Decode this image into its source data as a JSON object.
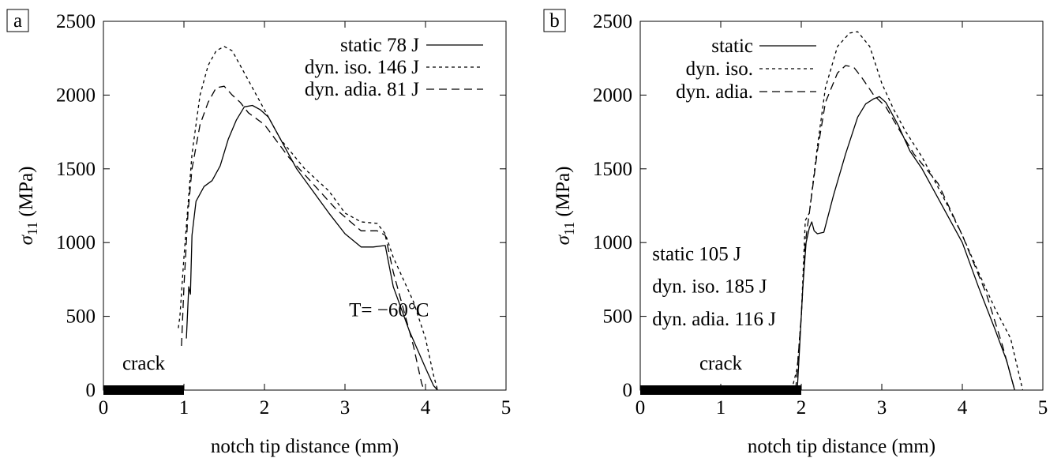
{
  "chart_data": [
    {
      "type": "line",
      "panel_label": "a",
      "xlabel": "notch tip distance (mm)",
      "ylabel": "σ11 (MPa)",
      "xlim": [
        0,
        5
      ],
      "ylim": [
        0,
        2500
      ],
      "xticks": [
        "0",
        "1",
        "2",
        "3",
        "4",
        "5"
      ],
      "yticks": [
        "0",
        "500",
        "1000",
        "1500",
        "2000",
        "2500"
      ],
      "grid": false,
      "legend_position": "top-right",
      "crack": {
        "label": "crack",
        "x_start": 0,
        "x_end": 1
      },
      "annotations": [
        {
          "text": "T= −60°C",
          "x": 3.05,
          "y": 500
        }
      ],
      "series": [
        {
          "name": "static 78 J",
          "style": "solid",
          "x": [
            1.03,
            1.06,
            1.08,
            1.1,
            1.15,
            1.25,
            1.35,
            1.45,
            1.55,
            1.65,
            1.75,
            1.85,
            1.95,
            2.05,
            2.2,
            2.4,
            2.6,
            2.8,
            3.0,
            3.2,
            3.35,
            3.5,
            3.6,
            3.8,
            4.0,
            4.1,
            4.15
          ],
          "y": [
            350,
            700,
            650,
            1050,
            1280,
            1380,
            1420,
            1520,
            1700,
            1830,
            1920,
            1930,
            1900,
            1850,
            1700,
            1500,
            1350,
            1200,
            1060,
            970,
            970,
            980,
            700,
            400,
            150,
            30,
            0
          ]
        },
        {
          "name": "dyn. iso. 146 J",
          "style": "dotted",
          "x": [
            0.93,
            0.95,
            1.0,
            1.05,
            1.1,
            1.2,
            1.3,
            1.4,
            1.5,
            1.6,
            1.7,
            1.8,
            1.9,
            2.0,
            2.2,
            2.5,
            2.8,
            3.0,
            3.2,
            3.4,
            3.5,
            3.6,
            3.7,
            3.85,
            4.0,
            4.1,
            4.15
          ],
          "y": [
            420,
            500,
            900,
            1250,
            1600,
            2000,
            2200,
            2300,
            2330,
            2300,
            2200,
            2100,
            2000,
            1900,
            1700,
            1500,
            1350,
            1200,
            1140,
            1130,
            1060,
            900,
            780,
            600,
            350,
            100,
            0
          ]
        },
        {
          "name": "dyn. adia. 81 J",
          "style": "dashed",
          "x": [
            0.97,
            1.0,
            1.05,
            1.1,
            1.2,
            1.3,
            1.4,
            1.5,
            1.6,
            1.7,
            1.8,
            2.0,
            2.3,
            2.6,
            2.9,
            3.2,
            3.4,
            3.5,
            3.6,
            3.7,
            3.85,
            3.95,
            3.98
          ],
          "y": [
            300,
            700,
            1200,
            1500,
            1800,
            1950,
            2050,
            2060,
            2000,
            1950,
            1880,
            1800,
            1580,
            1400,
            1220,
            1080,
            1080,
            1050,
            800,
            600,
            300,
            50,
            0
          ]
        }
      ]
    },
    {
      "type": "line",
      "panel_label": "b",
      "xlabel": "notch tip distance (mm)",
      "ylabel": "σ11 (MPa)",
      "xlim": [
        0,
        5
      ],
      "ylim": [
        0,
        2500
      ],
      "xticks": [
        "0",
        "1",
        "2",
        "3",
        "4",
        "5"
      ],
      "yticks": [
        "0",
        "500",
        "1000",
        "1500",
        "2000",
        "2500"
      ],
      "grid": false,
      "legend_position": "top-left",
      "crack": {
        "label": "crack",
        "x_start": 0,
        "x_end": 2
      },
      "annotations": [
        {
          "text": "static 105 J",
          "x": 0.15,
          "y": 880
        },
        {
          "text": "dyn. iso. 185 J",
          "x": 0.15,
          "y": 660
        },
        {
          "text": "dyn. adia. 116 J",
          "x": 0.15,
          "y": 440
        }
      ],
      "series": [
        {
          "name": "static",
          "style": "solid",
          "x": [
            1.95,
            1.98,
            2.02,
            2.06,
            2.1,
            2.13,
            2.16,
            2.2,
            2.28,
            2.4,
            2.55,
            2.7,
            2.8,
            2.9,
            2.97,
            3.05,
            3.2,
            3.35,
            3.5,
            3.8,
            4.0,
            4.2,
            4.4,
            4.55,
            4.65
          ],
          "y": [
            0,
            300,
            700,
            1000,
            1100,
            1140,
            1080,
            1060,
            1070,
            1320,
            1600,
            1850,
            1940,
            1975,
            1990,
            1950,
            1800,
            1620,
            1500,
            1200,
            1000,
            700,
            420,
            200,
            0
          ]
        },
        {
          "name": "dyn. iso.",
          "style": "dotted",
          "x": [
            1.88,
            1.95,
            2.0,
            2.05,
            2.1,
            2.2,
            2.3,
            2.45,
            2.6,
            2.7,
            2.85,
            3.0,
            3.15,
            3.3,
            3.5,
            3.8,
            4.0,
            4.2,
            4.4,
            4.6,
            4.75
          ],
          "y": [
            0,
            150,
            500,
            1150,
            1200,
            1650,
            2050,
            2330,
            2420,
            2430,
            2330,
            2080,
            1900,
            1750,
            1580,
            1270,
            1050,
            800,
            560,
            350,
            0
          ]
        },
        {
          "name": "dyn. adia.",
          "style": "dashed",
          "x": [
            1.93,
            2.0,
            2.05,
            2.1,
            2.2,
            2.3,
            2.45,
            2.55,
            2.65,
            2.75,
            2.9,
            3.05,
            3.2,
            3.4,
            3.7,
            4.0,
            4.3,
            4.5,
            4.65
          ],
          "y": [
            0,
            500,
            1000,
            1200,
            1620,
            1950,
            2150,
            2200,
            2190,
            2120,
            2000,
            1920,
            1780,
            1600,
            1400,
            1050,
            650,
            300,
            0
          ]
        }
      ]
    }
  ]
}
